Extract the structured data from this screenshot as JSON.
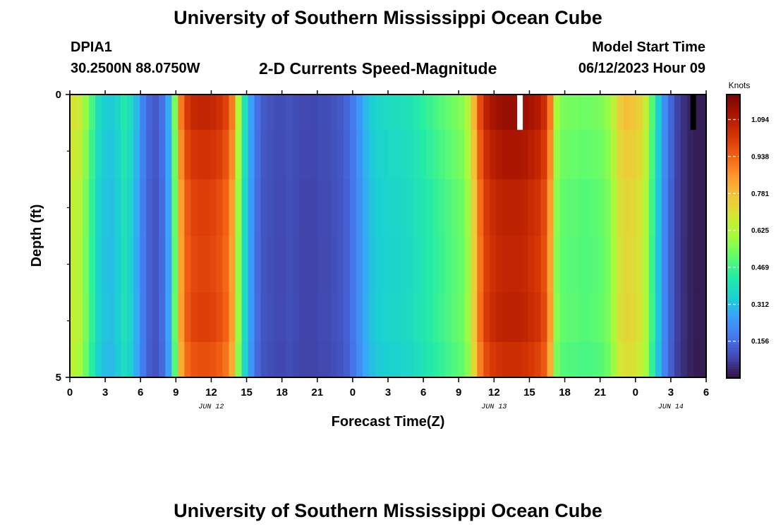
{
  "header": {
    "title": "University of Southern Mississippi Ocean Cube",
    "station": "DPIA1",
    "coords": "30.2500N  88.0750W",
    "chart_title": "2-D Currents Speed-Magnitude",
    "model_label": "Model Start Time",
    "model_time": "06/12/2023 Hour 09"
  },
  "footer": {
    "title": "University of Southern Mississippi Ocean Cube"
  },
  "chart_data": {
    "type": "heatmap",
    "title": "2-D Currents Speed-Magnitude",
    "xlabel": "Forecast Time(Z)",
    "ylabel": "Depth (ft)",
    "xlim": [
      0,
      54
    ],
    "ylim": [
      5,
      0
    ],
    "x_ticks": [
      0,
      3,
      6,
      9,
      12,
      15,
      18,
      21,
      24,
      27,
      30,
      33,
      36,
      39,
      42,
      45,
      48,
      51,
      54
    ],
    "x_tick_labels": [
      "0",
      "3",
      "6",
      "9",
      "12",
      "15",
      "18",
      "21",
      "0",
      "3",
      "6",
      "9",
      "12",
      "15",
      "18",
      "21",
      "0",
      "3",
      "6"
    ],
    "y_ticks": [
      0,
      5
    ],
    "y_tick_labels": [
      "0",
      "5"
    ],
    "date_labels": [
      {
        "text": "JUN 12",
        "x": 12
      },
      {
        "text": "JUN 13",
        "x": 36
      },
      {
        "text": "JUN 14",
        "x": 51
      }
    ],
    "colorbar": {
      "unit": "Knots",
      "min": 0.0,
      "max": 1.2,
      "tick_values": [
        1.094,
        0.938,
        0.781,
        0.625,
        0.469,
        0.312,
        0.156
      ],
      "tick_labels": [
        "1.094",
        "0.938",
        "0.781",
        "0.625",
        "0.469",
        "0.312",
        "0.156"
      ]
    },
    "depths": [
      0.25,
      1.0,
      2.0,
      3.0,
      4.0,
      4.75
    ],
    "speed_profile_knots": [
      0.7,
      0.67,
      0.58,
      0.48,
      0.38,
      0.34,
      0.33,
      0.36,
      0.42,
      0.38,
      0.3,
      0.2,
      0.14,
      0.12,
      0.16,
      0.28,
      0.55,
      0.9,
      1.02,
      1.06,
      1.07,
      1.07,
      1.06,
      1.04,
      1.0,
      0.9,
      0.62,
      0.4,
      0.26,
      0.16,
      0.12,
      0.11,
      0.1,
      0.1,
      0.11,
      0.1,
      0.09,
      0.09,
      0.09,
      0.1,
      0.1,
      0.11,
      0.12,
      0.14,
      0.18,
      0.24,
      0.3,
      0.34,
      0.36,
      0.37,
      0.38,
      0.38,
      0.39,
      0.4,
      0.42,
      0.44,
      0.46,
      0.48,
      0.5,
      0.52,
      0.54,
      0.56,
      0.62,
      0.8,
      0.98,
      1.08,
      1.12,
      1.14,
      1.15,
      1.15,
      1.15,
      1.14,
      1.12,
      1.1,
      1.05,
      0.9,
      0.6,
      0.55,
      0.54,
      0.54,
      0.53,
      0.53,
      0.54,
      0.55,
      0.58,
      0.65,
      0.75,
      0.78,
      0.77,
      0.74,
      0.66,
      0.5,
      0.34,
      0.22,
      0.14,
      0.08,
      0.05,
      0.03,
      0.02,
      0.02
    ],
    "depth_factors": [
      1.0,
      0.97,
      0.94,
      0.93,
      0.94,
      0.91
    ],
    "missing_cells": [
      {
        "time": 38.2,
        "depth": 0.25,
        "color": "#ffffff"
      },
      {
        "time": 52.9,
        "depth": 0.25,
        "color": "#000000"
      }
    ]
  }
}
